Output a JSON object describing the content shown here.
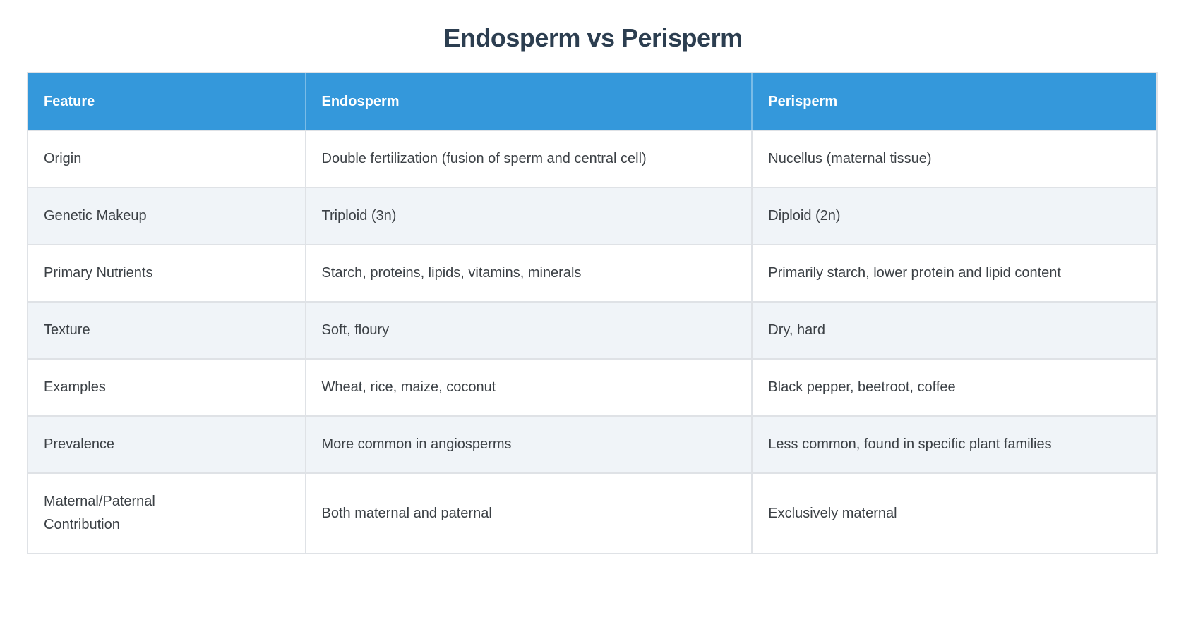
{
  "title": "Endosperm vs Perisperm",
  "colors": {
    "header_bg": "#3498db",
    "header_text": "#ffffff",
    "title_text": "#2c3e50",
    "body_text": "#3b4045",
    "row_alt_bg": "#f0f4f8",
    "border": "#dfe2e6",
    "page_bg": "#ffffff"
  },
  "table": {
    "columns": [
      "Feature",
      "Endosperm",
      "Perisperm"
    ],
    "rows": [
      {
        "feature": "Origin",
        "endosperm": "Double fertilization (fusion of sperm and central cell)",
        "perisperm": "Nucellus (maternal tissue)"
      },
      {
        "feature": "Genetic Makeup",
        "endosperm": "Triploid (3n)",
        "perisperm": "Diploid (2n)"
      },
      {
        "feature": "Primary Nutrients",
        "endosperm": "Starch, proteins, lipids, vitamins, minerals",
        "perisperm": "Primarily starch, lower protein and lipid content"
      },
      {
        "feature": "Texture",
        "endosperm": "Soft, floury",
        "perisperm": "Dry, hard"
      },
      {
        "feature": "Examples",
        "endosperm": "Wheat, rice, maize, coconut",
        "perisperm": "Black pepper, beetroot, coffee"
      },
      {
        "feature": "Prevalence",
        "endosperm": "More common in angiosperms",
        "perisperm": "Less common, found in specific plant families"
      },
      {
        "feature": "Maternal/Paternal Contribution",
        "endosperm": "Both maternal and paternal",
        "perisperm": "Exclusively maternal"
      }
    ]
  }
}
